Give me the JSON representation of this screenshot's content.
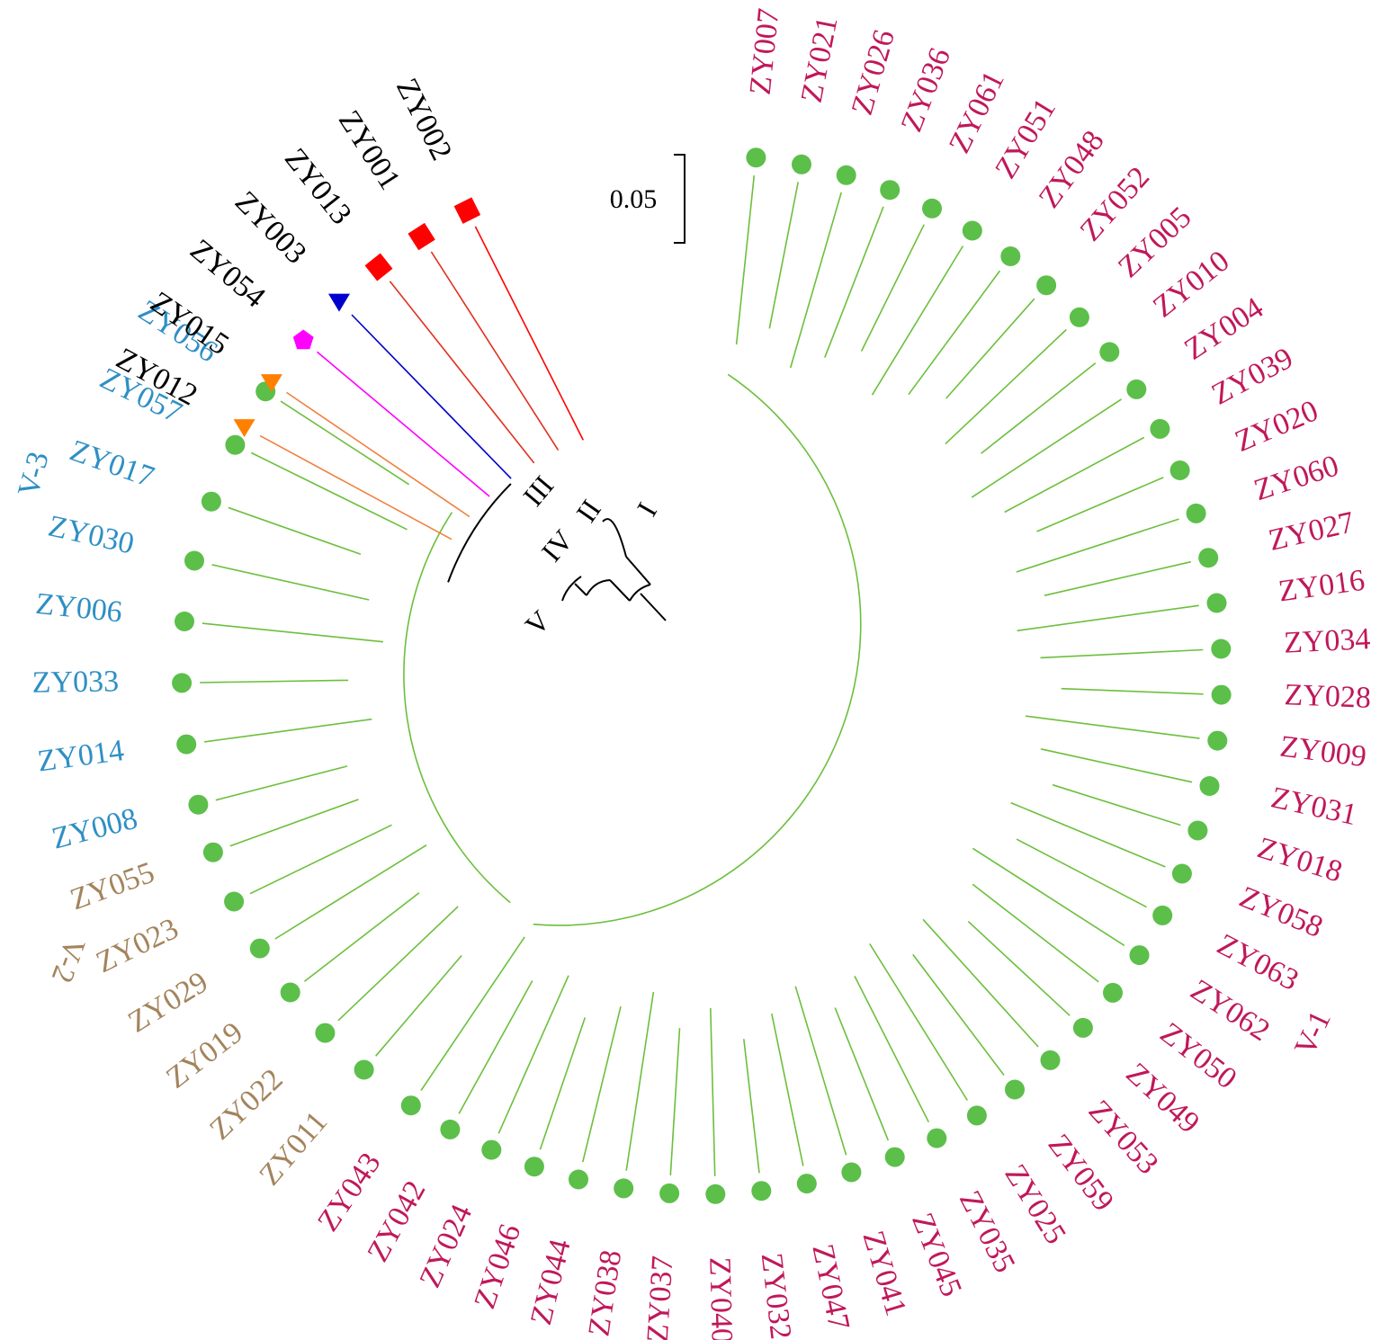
{
  "colors": {
    "v1_label": "#c0185a",
    "v2_label": "#a3845c",
    "v3_label": "#2e8fc4",
    "other_label": "#000000",
    "green_branch": "#6cbf3c",
    "green_marker": "#5cbf4a",
    "clade_i": "#ff0000",
    "clade_ii": "#e03020",
    "clade_iii_blue": "#0000cc",
    "clade_iii_magenta": "#ff00ff",
    "clade_iv": "#f08040",
    "clade_iv_marker": "#ff8000",
    "backbone": "#000000"
  },
  "scale_bar": {
    "label": "0.05"
  },
  "clade_labels": [
    "I",
    "II",
    "III",
    "IV",
    "V"
  ],
  "group_labels": {
    "v1": "V-1",
    "v2": "V-2",
    "v3": "V-3"
  },
  "outgroups": [
    {
      "name": "ZY002",
      "marker": "square",
      "color": "#ff0000"
    },
    {
      "name": "ZY001",
      "marker": "square",
      "color": "#ff0000"
    },
    {
      "name": "ZY013",
      "marker": "square",
      "color": "#ff0000"
    },
    {
      "name": "ZY003",
      "marker": "triangle-down",
      "color": "#0000cc"
    },
    {
      "name": "ZY054",
      "marker": "pentagon",
      "color": "#ff00ff"
    },
    {
      "name": "ZY015",
      "marker": "triangle-down",
      "color": "#ff8000"
    },
    {
      "name": "ZY012",
      "marker": "triangle-down",
      "color": "#ff8000"
    }
  ],
  "v3_leaves": [
    "ZY056",
    "ZY057",
    "ZY017",
    "ZY030",
    "ZY006",
    "ZY033",
    "ZY014",
    "ZY008"
  ],
  "v2_leaves": [
    "ZY055",
    "ZY023",
    "ZY029",
    "ZY019",
    "ZY022",
    "ZY011"
  ],
  "v1_leaves": [
    "ZY043",
    "ZY042",
    "ZY024",
    "ZY046",
    "ZY044",
    "ZY038",
    "ZY037",
    "ZY040",
    "ZY032",
    "ZY047",
    "ZY041",
    "ZY045",
    "ZY035",
    "ZY025",
    "ZY059",
    "ZY053",
    "ZY049",
    "ZY050",
    "ZY062",
    "ZY063",
    "ZY058",
    "ZY018",
    "ZY031",
    "ZY009",
    "ZY028",
    "ZY034",
    "ZY016",
    "ZY027",
    "ZY060",
    "ZY020",
    "ZY039",
    "ZY004",
    "ZY010",
    "ZY005",
    "ZY052",
    "ZY048",
    "ZY051",
    "ZY061",
    "ZY036",
    "ZY026",
    "ZY021",
    "ZY007"
  ]
}
